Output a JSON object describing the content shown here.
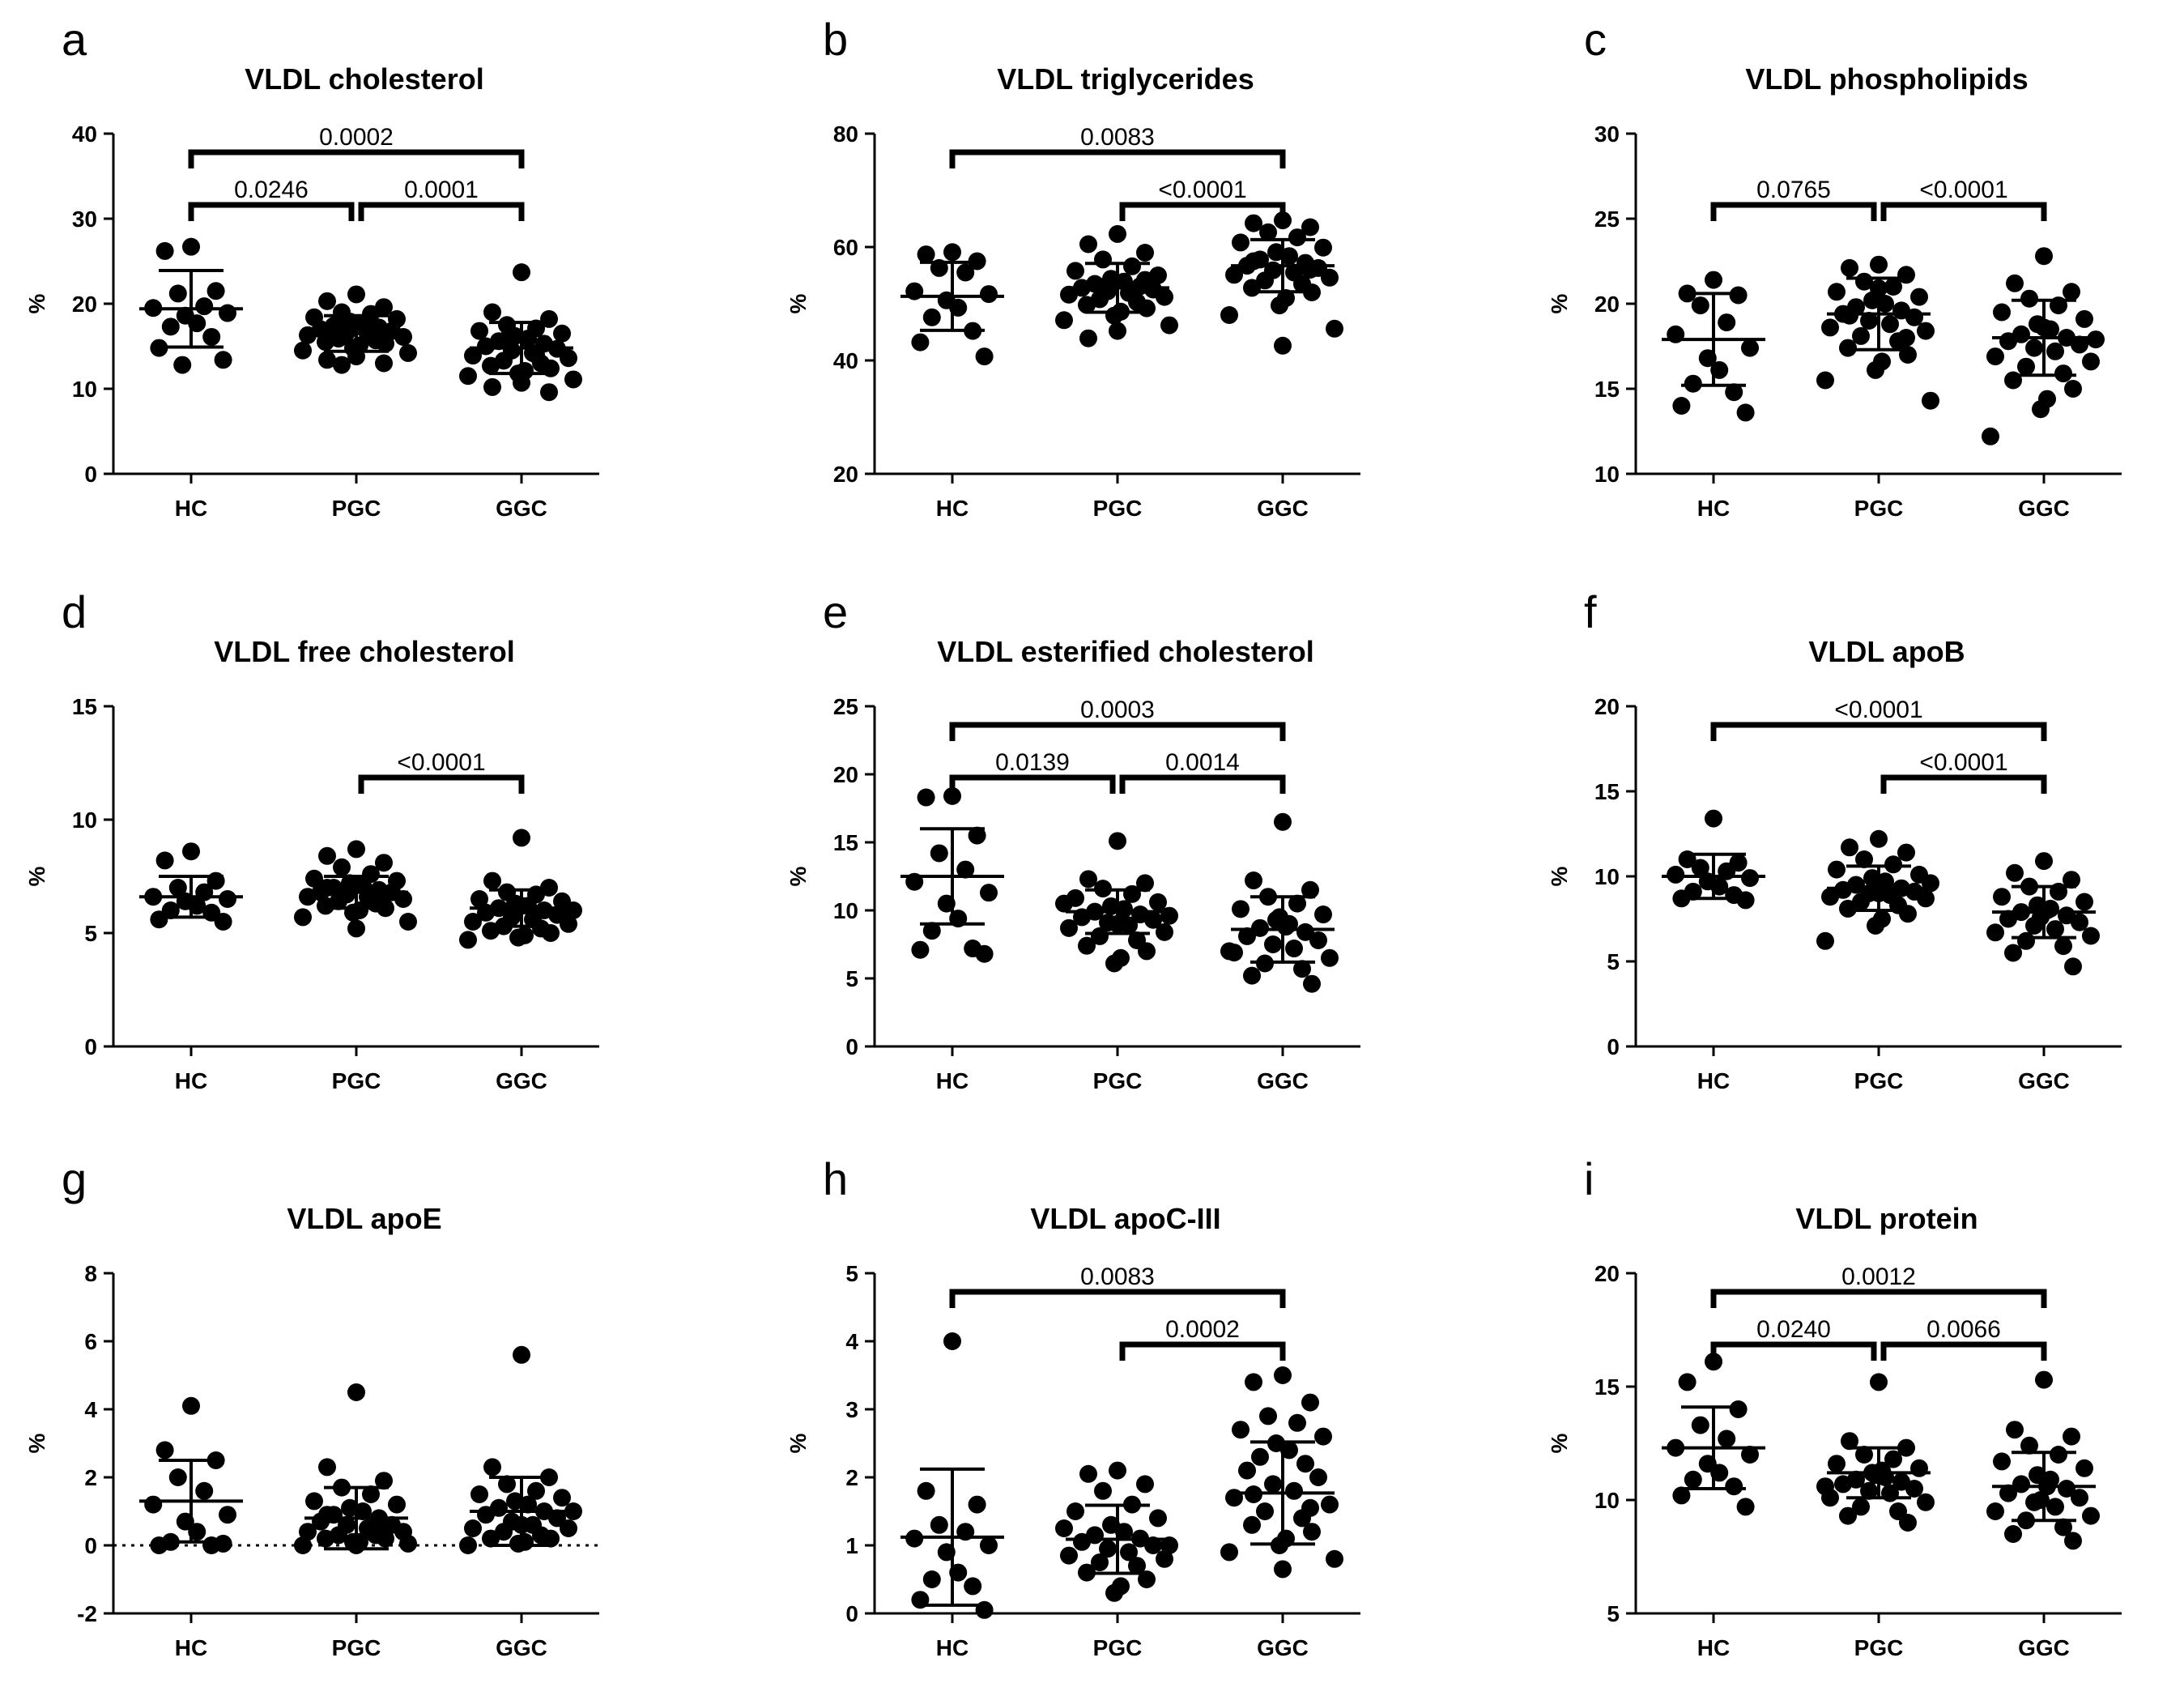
{
  "chart_data": [
    {
      "letter": "a",
      "type": "scatter",
      "title": "VLDL cholesterol",
      "ylabel": "%",
      "ylim": [
        0,
        40
      ],
      "yticks": [
        "0",
        "10",
        "20",
        "30",
        "40"
      ],
      "categories": [
        "HC",
        "PGC",
        "GGC"
      ],
      "means": [
        19.4,
        16.5,
        14.8
      ],
      "sd": [
        4.5,
        2.1,
        3.0
      ],
      "series": [
        {
          "name": "HC",
          "values": [
            26.7,
            26.2,
            21.5,
            21.2,
            19.7,
            19.5,
            18.9,
            18.6,
            17.7,
            17.3,
            16.1,
            14.8,
            13.4,
            12.8
          ]
        },
        {
          "name": "PGC",
          "values": [
            21.1,
            20.3,
            19.6,
            19.0,
            18.8,
            18.4,
            18.2,
            17.9,
            17.6,
            17.4,
            17.2,
            17.0,
            16.8,
            16.6,
            16.5,
            16.3,
            16.1,
            15.9,
            15.7,
            15.5,
            15.3,
            15.1,
            14.8,
            14.5,
            14.2,
            13.8,
            13.4,
            13.0,
            12.8,
            17.5
          ]
        },
        {
          "name": "GGC",
          "values": [
            23.7,
            19.0,
            18.2,
            17.5,
            17.1,
            16.8,
            16.5,
            16.2,
            15.9,
            15.6,
            15.3,
            15.0,
            14.7,
            14.5,
            14.2,
            13.9,
            13.6,
            13.3,
            13.0,
            12.7,
            12.4,
            12.1,
            11.8,
            11.5,
            11.1,
            10.7,
            10.2,
            9.6,
            15.8,
            14.0
          ]
        }
      ],
      "comparisons": [
        {
          "from": "HC",
          "to": "GGC",
          "label": "0.0002",
          "level": 2
        },
        {
          "from": "HC",
          "to": "PGC",
          "label": "0.0246",
          "level": 1
        },
        {
          "from": "PGC",
          "to": "GGC",
          "label": "0.0001",
          "level": 1
        }
      ]
    },
    {
      "letter": "b",
      "type": "scatter",
      "title": "VLDL triglycerides",
      "ylabel": "%",
      "ylim": [
        20,
        80
      ],
      "yticks": [
        "20",
        "40",
        "60",
        "80"
      ],
      "categories": [
        "HC",
        "PGC",
        "GGC"
      ],
      "means": [
        51.3,
        52.8,
        56.7
      ],
      "sd": [
        6.0,
        4.3,
        4.6
      ],
      "series": [
        {
          "name": "HC",
          "values": [
            59.1,
            58.7,
            57.5,
            56.3,
            55.5,
            52.2,
            51.7,
            50.6,
            49.3,
            47.6,
            45.2,
            43.2,
            40.7
          ]
        },
        {
          "name": "PGC",
          "values": [
            62.3,
            60.5,
            59.0,
            57.8,
            56.6,
            55.8,
            55.0,
            54.4,
            53.9,
            53.5,
            53.1,
            52.8,
            52.5,
            52.2,
            51.9,
            51.6,
            51.2,
            50.8,
            50.3,
            49.8,
            49.2,
            48.6,
            47.9,
            47.1,
            46.2,
            45.2,
            43.9,
            54.2,
            53.0
          ]
        },
        {
          "name": "GGC",
          "values": [
            64.7,
            64.2,
            63.5,
            62.6,
            61.7,
            60.8,
            59.9,
            59.1,
            58.4,
            57.8,
            57.2,
            56.7,
            56.3,
            55.9,
            55.5,
            55.1,
            54.6,
            54.1,
            53.5,
            52.8,
            52.0,
            51.0,
            49.7,
            48.0,
            45.6,
            42.6,
            57.5,
            56.0
          ]
        }
      ],
      "comparisons": [
        {
          "from": "HC",
          "to": "GGC",
          "label": "0.0083",
          "level": 2
        },
        {
          "from": "PGC",
          "to": "GGC",
          "label": "<0.0001",
          "level": 1
        }
      ]
    },
    {
      "letter": "c",
      "type": "scatter",
      "title": "VLDL phospholipids",
      "ylabel": "%",
      "ylim": [
        10,
        30
      ],
      "yticks": [
        "10",
        "15",
        "20",
        "25",
        "30"
      ],
      "categories": [
        "HC",
        "PGC",
        "GGC"
      ],
      "means": [
        17.9,
        19.4,
        18.0
      ],
      "sd": [
        2.7,
        2.1,
        2.2
      ],
      "series": [
        {
          "name": "HC",
          "values": [
            21.4,
            20.6,
            20.5,
            19.9,
            18.9,
            18.2,
            17.4,
            16.8,
            16.1,
            15.3,
            14.8,
            14.0,
            13.6
          ]
        },
        {
          "name": "PGC",
          "values": [
            22.3,
            22.1,
            21.7,
            21.3,
            21.0,
            20.7,
            20.4,
            20.2,
            20.0,
            19.8,
            19.6,
            19.4,
            19.2,
            19.0,
            18.8,
            18.6,
            18.4,
            18.1,
            17.8,
            17.4,
            17.0,
            16.6,
            16.1,
            15.5,
            14.3,
            20.9,
            19.3,
            18.0
          ]
        },
        {
          "name": "GGC",
          "values": [
            22.8,
            21.2,
            20.7,
            20.3,
            19.9,
            19.5,
            19.1,
            18.8,
            18.5,
            18.2,
            18.0,
            17.8,
            17.6,
            17.4,
            17.2,
            16.9,
            16.6,
            16.3,
            15.9,
            15.5,
            15.0,
            14.4,
            13.8,
            12.2,
            17.9,
            18.6
          ]
        }
      ],
      "comparisons": [
        {
          "from": "HC",
          "to": "PGC",
          "label": "0.0765",
          "level": 1
        },
        {
          "from": "PGC",
          "to": "GGC",
          "label": "<0.0001",
          "level": 1
        }
      ]
    },
    {
      "letter": "d",
      "type": "scatter",
      "title": "VLDL free cholesterol",
      "ylabel": "%",
      "ylim": [
        0,
        15
      ],
      "yticks": [
        "0",
        "5",
        "10",
        "15"
      ],
      "categories": [
        "HC",
        "PGC",
        "GGC"
      ],
      "means": [
        6.6,
        6.8,
        6.1
      ],
      "sd": [
        0.9,
        0.7,
        0.8
      ],
      "series": [
        {
          "name": "HC",
          "values": [
            8.6,
            8.2,
            7.3,
            7.0,
            6.8,
            6.6,
            6.5,
            6.4,
            6.2,
            6.0,
            5.9,
            5.6,
            5.5
          ]
        },
        {
          "name": "PGC",
          "values": [
            8.7,
            8.4,
            8.1,
            7.9,
            7.6,
            7.4,
            7.3,
            7.2,
            7.1,
            7.0,
            6.9,
            6.8,
            6.8,
            6.7,
            6.6,
            6.6,
            6.5,
            6.4,
            6.3,
            6.2,
            6.1,
            6.0,
            5.9,
            5.7,
            5.5,
            5.2,
            7.0,
            6.7
          ]
        },
        {
          "name": "GGC",
          "values": [
            9.2,
            7.3,
            7.0,
            6.8,
            6.7,
            6.5,
            6.4,
            6.3,
            6.2,
            6.1,
            6.0,
            5.9,
            5.8,
            5.7,
            5.6,
            5.5,
            5.4,
            5.3,
            5.2,
            5.1,
            5.0,
            4.9,
            4.8,
            4.7,
            6.0,
            6.2
          ]
        }
      ],
      "comparisons": [
        {
          "from": "PGC",
          "to": "GGC",
          "label": "<0.0001",
          "level": 1
        }
      ]
    },
    {
      "letter": "e",
      "type": "scatter",
      "title": "VLDL esterified cholesterol",
      "ylabel": "%",
      "ylim": [
        0,
        25
      ],
      "yticks": [
        "0",
        "5",
        "10",
        "15",
        "20",
        "25"
      ],
      "categories": [
        "HC",
        "PGC",
        "GGC"
      ],
      "means": [
        12.5,
        9.9,
        8.6
      ],
      "sd": [
        3.5,
        1.6,
        2.4
      ],
      "series": [
        {
          "name": "HC",
          "values": [
            18.4,
            18.3,
            15.5,
            14.2,
            13.0,
            12.1,
            11.3,
            10.5,
            9.4,
            8.5,
            7.2,
            7.1,
            6.8
          ]
        },
        {
          "name": "PGC",
          "values": [
            15.1,
            12.3,
            12.0,
            11.6,
            11.2,
            10.9,
            10.6,
            10.3,
            10.1,
            9.9,
            9.7,
            9.5,
            9.3,
            9.1,
            8.9,
            8.7,
            8.4,
            8.1,
            7.8,
            7.4,
            7.0,
            6.5,
            6.1,
            10.5,
            9.6,
            9.0
          ]
        },
        {
          "name": "GGC",
          "values": [
            16.5,
            12.2,
            11.5,
            11.0,
            10.5,
            10.1,
            9.7,
            9.3,
            9.0,
            8.7,
            8.4,
            8.1,
            7.8,
            7.5,
            7.2,
            6.9,
            6.5,
            6.1,
            5.7,
            5.2,
            4.6,
            8.8,
            9.5,
            7.0
          ]
        }
      ],
      "comparisons": [
        {
          "from": "HC",
          "to": "GGC",
          "label": "0.0003",
          "level": 2
        },
        {
          "from": "HC",
          "to": "PGC",
          "label": "0.0139",
          "level": 1
        },
        {
          "from": "PGC",
          "to": "GGC",
          "label": "0.0014",
          "level": 1
        }
      ]
    },
    {
      "letter": "f",
      "type": "scatter",
      "title": "VLDL apoB",
      "ylabel": "%",
      "ylim": [
        0,
        20
      ],
      "yticks": [
        "0",
        "5",
        "10",
        "15",
        "20"
      ],
      "categories": [
        "HC",
        "PGC",
        "GGC"
      ],
      "means": [
        10.0,
        9.3,
        7.9
      ],
      "sd": [
        1.3,
        1.3,
        1.5
      ],
      "series": [
        {
          "name": "HC",
          "values": [
            13.4,
            11.0,
            10.8,
            10.5,
            10.3,
            10.1,
            9.9,
            9.7,
            9.4,
            9.1,
            8.9,
            8.7,
            8.6
          ]
        },
        {
          "name": "PGC",
          "values": [
            12.2,
            11.7,
            11.4,
            11.0,
            10.7,
            10.4,
            10.1,
            9.9,
            9.7,
            9.5,
            9.3,
            9.2,
            9.1,
            9.0,
            8.9,
            8.8,
            8.7,
            8.5,
            8.3,
            8.1,
            7.8,
            7.5,
            7.1,
            6.2,
            9.6,
            9.0
          ]
        },
        {
          "name": "GGC",
          "values": [
            10.9,
            10.2,
            9.8,
            9.4,
            9.1,
            8.8,
            8.5,
            8.3,
            8.1,
            7.9,
            7.7,
            7.5,
            7.3,
            7.1,
            6.9,
            6.7,
            6.5,
            6.2,
            5.9,
            5.5,
            4.7,
            8.0,
            7.6
          ]
        }
      ],
      "comparisons": [
        {
          "from": "HC",
          "to": "GGC",
          "label": "<0.0001",
          "level": 2
        },
        {
          "from": "PGC",
          "to": "GGC",
          "label": "<0.0001",
          "level": 1
        }
      ]
    },
    {
      "letter": "g",
      "type": "scatter",
      "title": "VLDL apoE",
      "ylabel": "%",
      "ylim": [
        -2,
        8
      ],
      "yticks": [
        "-2",
        "0",
        "2",
        "4",
        "6",
        "8"
      ],
      "categories": [
        "HC",
        "PGC",
        "GGC"
      ],
      "means": [
        1.3,
        0.8,
        1.0
      ],
      "sd": [
        1.2,
        0.9,
        1.0
      ],
      "series": [
        {
          "name": "HC",
          "values": [
            4.1,
            2.8,
            2.5,
            2.0,
            1.6,
            1.2,
            0.9,
            0.7,
            0.4,
            0.1,
            0.0,
            0.0,
            0.05
          ]
        },
        {
          "name": "PGC",
          "values": [
            4.5,
            2.3,
            1.9,
            1.7,
            1.5,
            1.3,
            1.2,
            1.1,
            1.0,
            0.9,
            0.8,
            0.7,
            0.6,
            0.6,
            0.5,
            0.4,
            0.4,
            0.3,
            0.3,
            0.2,
            0.2,
            0.1,
            0.1,
            0.0,
            0.05,
            0.0,
            0.9,
            0.5
          ]
        },
        {
          "name": "GGC",
          "values": [
            5.6,
            2.3,
            2.0,
            1.8,
            1.6,
            1.5,
            1.4,
            1.3,
            1.2,
            1.1,
            1.0,
            0.9,
            0.8,
            0.7,
            0.6,
            0.5,
            0.5,
            0.4,
            0.3,
            0.2,
            0.2,
            0.1,
            0.05,
            0.0,
            1.0,
            0.6
          ]
        }
      ],
      "comparisons": []
    },
    {
      "letter": "h",
      "type": "scatter",
      "title": "VLDL apoC-III",
      "ylabel": "%",
      "ylim": [
        0,
        5
      ],
      "yticks": [
        "0",
        "1",
        "2",
        "3",
        "4",
        "5"
      ],
      "categories": [
        "HC",
        "PGC",
        "GGC"
      ],
      "means": [
        1.12,
        1.09,
        1.77
      ],
      "sd": [
        1.0,
        0.5,
        0.75
      ],
      "series": [
        {
          "name": "HC",
          "values": [
            4.0,
            1.8,
            1.6,
            1.3,
            1.2,
            1.1,
            1.0,
            0.9,
            0.6,
            0.5,
            0.4,
            0.2,
            0.05
          ]
        },
        {
          "name": "PGC",
          "values": [
            2.1,
            2.05,
            1.9,
            1.8,
            1.6,
            1.5,
            1.4,
            1.3,
            1.2,
            1.15,
            1.1,
            1.05,
            1.0,
            0.95,
            0.9,
            0.85,
            0.8,
            0.75,
            0.7,
            0.6,
            0.5,
            0.4,
            0.3,
            1.25,
            1.0
          ]
        },
        {
          "name": "GGC",
          "values": [
            3.5,
            3.4,
            3.1,
            2.9,
            2.8,
            2.7,
            2.6,
            2.5,
            2.4,
            2.3,
            2.2,
            2.1,
            2.0,
            1.9,
            1.8,
            1.7,
            1.6,
            1.5,
            1.4,
            1.3,
            1.2,
            1.1,
            1.0,
            0.9,
            0.8,
            0.65,
            1.75,
            1.55
          ]
        }
      ],
      "comparisons": [
        {
          "from": "HC",
          "to": "GGC",
          "label": "0.0083",
          "level": 2
        },
        {
          "from": "PGC",
          "to": "GGC",
          "label": "0.0002",
          "level": 1
        }
      ]
    },
    {
      "letter": "i",
      "type": "scatter",
      "title": "VLDL protein",
      "ylabel": "%",
      "ylim": [
        5,
        20
      ],
      "yticks": [
        "5",
        "10",
        "15",
        "20"
      ],
      "categories": [
        "HC",
        "PGC",
        "GGC"
      ],
      "means": [
        12.3,
        11.2,
        10.6
      ],
      "sd": [
        1.8,
        1.1,
        1.5
      ],
      "series": [
        {
          "name": "HC",
          "values": [
            16.1,
            15.2,
            14.0,
            13.3,
            12.7,
            12.3,
            12.0,
            11.6,
            11.2,
            10.9,
            10.6,
            10.2,
            9.7
          ]
        },
        {
          "name": "PGC",
          "values": [
            15.2,
            12.6,
            12.3,
            12.0,
            11.8,
            11.6,
            11.4,
            11.2,
            11.0,
            10.9,
            10.8,
            10.7,
            10.5,
            10.4,
            10.3,
            10.1,
            9.9,
            9.7,
            9.5,
            9.3,
            9.0,
            11.3,
            11.1,
            10.6
          ]
        },
        {
          "name": "GGC",
          "values": [
            15.3,
            13.1,
            12.8,
            12.4,
            12.0,
            11.7,
            11.4,
            11.1,
            10.9,
            10.7,
            10.5,
            10.3,
            10.1,
            9.9,
            9.7,
            9.5,
            9.3,
            9.1,
            8.8,
            8.5,
            8.2,
            10.6,
            10.0
          ]
        }
      ],
      "comparisons": [
        {
          "from": "HC",
          "to": "GGC",
          "label": "0.0012",
          "level": 2
        },
        {
          "from": "HC",
          "to": "PGC",
          "label": "0.0240",
          "level": 1
        },
        {
          "from": "PGC",
          "to": "GGC",
          "label": "0.0066",
          "level": 1
        }
      ]
    }
  ]
}
